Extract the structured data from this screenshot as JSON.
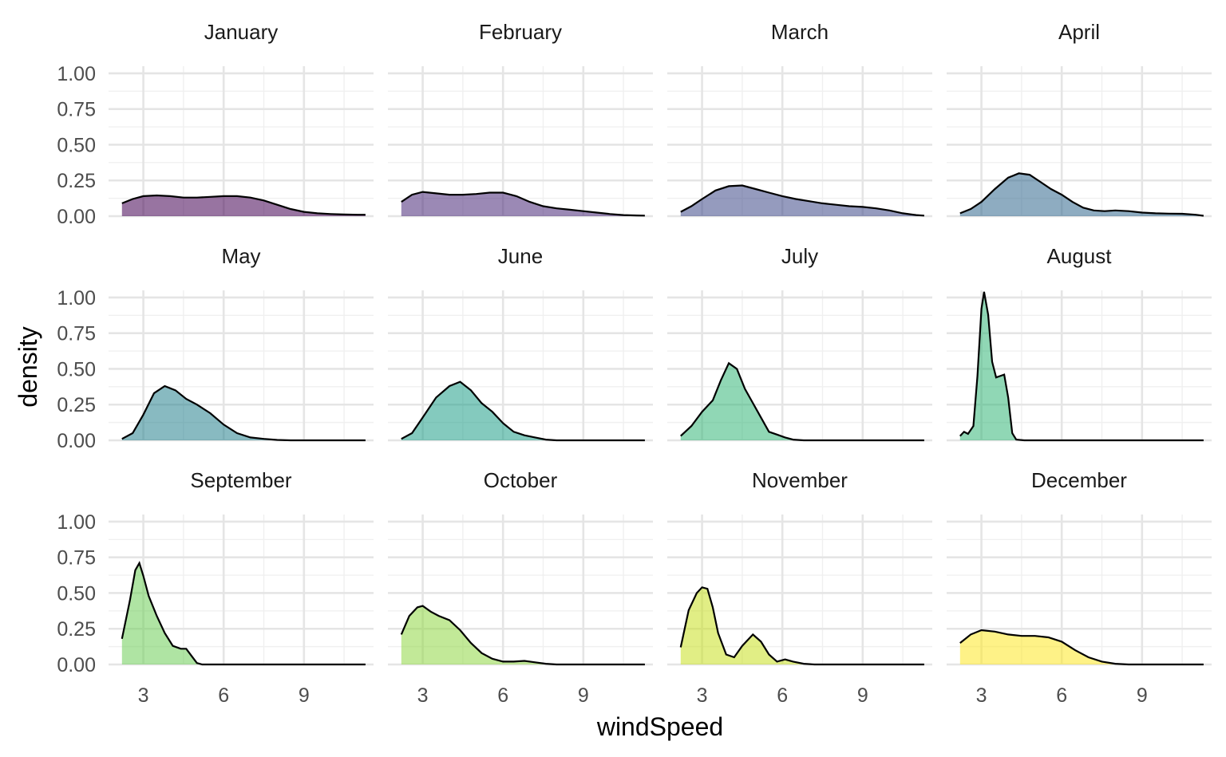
{
  "chart_data": {
    "type": "area",
    "xlabel": "windSpeed",
    "ylabel": "density",
    "xlim": [
      1.7,
      11.6
    ],
    "ylim": [
      0,
      1.05
    ],
    "x_ticks": [
      3,
      6,
      9
    ],
    "x_tick_labels": [
      "3",
      "6",
      "9"
    ],
    "y_ticks": [
      0,
      0.25,
      0.5,
      0.75,
      1.0
    ],
    "y_tick_labels": [
      "0.00",
      "0.25",
      "0.50",
      "0.75",
      "1.00"
    ],
    "grid": true,
    "legend": "none",
    "panels": [
      {
        "name": "January",
        "color": "#440154",
        "points": [
          [
            2.2,
            0.09
          ],
          [
            2.6,
            0.12
          ],
          [
            3.0,
            0.14
          ],
          [
            3.5,
            0.145
          ],
          [
            4.0,
            0.14
          ],
          [
            4.5,
            0.13
          ],
          [
            5.0,
            0.13
          ],
          [
            5.5,
            0.135
          ],
          [
            6.0,
            0.14
          ],
          [
            6.5,
            0.14
          ],
          [
            7.0,
            0.13
          ],
          [
            7.5,
            0.11
          ],
          [
            8.0,
            0.08
          ],
          [
            8.5,
            0.05
          ],
          [
            9.0,
            0.03
          ],
          [
            9.5,
            0.02
          ],
          [
            10.0,
            0.015
          ],
          [
            10.5,
            0.012
          ],
          [
            11.0,
            0.01
          ],
          [
            11.3,
            0.01
          ]
        ]
      },
      {
        "name": "February",
        "color": "#482878",
        "points": [
          [
            2.2,
            0.1
          ],
          [
            2.6,
            0.15
          ],
          [
            3.0,
            0.17
          ],
          [
            3.5,
            0.16
          ],
          [
            4.0,
            0.15
          ],
          [
            4.5,
            0.15
          ],
          [
            5.0,
            0.155
          ],
          [
            5.5,
            0.165
          ],
          [
            6.0,
            0.165
          ],
          [
            6.5,
            0.14
          ],
          [
            7.0,
            0.1
          ],
          [
            7.5,
            0.07
          ],
          [
            8.0,
            0.055
          ],
          [
            8.5,
            0.045
          ],
          [
            9.0,
            0.035
          ],
          [
            9.5,
            0.025
          ],
          [
            10.0,
            0.015
          ],
          [
            10.5,
            0.008
          ],
          [
            11.0,
            0.005
          ],
          [
            11.3,
            0.004
          ]
        ]
      },
      {
        "name": "March",
        "color": "#3e4989",
        "points": [
          [
            2.2,
            0.03
          ],
          [
            2.6,
            0.07
          ],
          [
            3.0,
            0.12
          ],
          [
            3.5,
            0.18
          ],
          [
            4.0,
            0.21
          ],
          [
            4.5,
            0.215
          ],
          [
            5.0,
            0.19
          ],
          [
            5.5,
            0.165
          ],
          [
            6.0,
            0.14
          ],
          [
            6.5,
            0.12
          ],
          [
            7.0,
            0.105
          ],
          [
            7.5,
            0.09
          ],
          [
            8.0,
            0.08
          ],
          [
            8.5,
            0.07
          ],
          [
            9.0,
            0.065
          ],
          [
            9.5,
            0.055
          ],
          [
            10.0,
            0.04
          ],
          [
            10.5,
            0.02
          ],
          [
            11.0,
            0.008
          ],
          [
            11.3,
            0.004
          ]
        ]
      },
      {
        "name": "April",
        "color": "#31688e",
        "points": [
          [
            2.2,
            0.02
          ],
          [
            2.6,
            0.05
          ],
          [
            3.0,
            0.1
          ],
          [
            3.5,
            0.19
          ],
          [
            4.0,
            0.27
          ],
          [
            4.4,
            0.3
          ],
          [
            4.8,
            0.29
          ],
          [
            5.2,
            0.24
          ],
          [
            5.6,
            0.19
          ],
          [
            6.0,
            0.15
          ],
          [
            6.4,
            0.1
          ],
          [
            6.8,
            0.06
          ],
          [
            7.2,
            0.04
          ],
          [
            7.6,
            0.035
          ],
          [
            8.0,
            0.04
          ],
          [
            8.5,
            0.035
          ],
          [
            9.0,
            0.025
          ],
          [
            9.5,
            0.02
          ],
          [
            10.0,
            0.018
          ],
          [
            10.5,
            0.017
          ],
          [
            11.0,
            0.01
          ],
          [
            11.3,
            0.003
          ]
        ]
      },
      {
        "name": "May",
        "color": "#26828e",
        "points": [
          [
            2.2,
            0.01
          ],
          [
            2.6,
            0.05
          ],
          [
            3.0,
            0.18
          ],
          [
            3.4,
            0.33
          ],
          [
            3.8,
            0.38
          ],
          [
            4.2,
            0.35
          ],
          [
            4.6,
            0.29
          ],
          [
            5.0,
            0.25
          ],
          [
            5.5,
            0.19
          ],
          [
            6.0,
            0.11
          ],
          [
            6.5,
            0.05
          ],
          [
            7.0,
            0.02
          ],
          [
            7.5,
            0.01
          ],
          [
            8.0,
            0.003
          ],
          [
            8.5,
            0.0
          ],
          [
            9.0,
            0.0
          ],
          [
            10.0,
            0.0
          ],
          [
            11.0,
            0.0
          ],
          [
            11.3,
            0.0
          ]
        ]
      },
      {
        "name": "June",
        "color": "#1f9e89",
        "points": [
          [
            2.2,
            0.01
          ],
          [
            2.6,
            0.05
          ],
          [
            3.0,
            0.16
          ],
          [
            3.5,
            0.3
          ],
          [
            4.0,
            0.38
          ],
          [
            4.4,
            0.41
          ],
          [
            4.8,
            0.35
          ],
          [
            5.2,
            0.26
          ],
          [
            5.6,
            0.2
          ],
          [
            6.0,
            0.12
          ],
          [
            6.4,
            0.06
          ],
          [
            6.8,
            0.035
          ],
          [
            7.2,
            0.02
          ],
          [
            7.6,
            0.005
          ],
          [
            8.0,
            0.0
          ],
          [
            9.0,
            0.0
          ],
          [
            10.0,
            0.0
          ],
          [
            11.0,
            0.0
          ],
          [
            11.3,
            0.0
          ]
        ]
      },
      {
        "name": "July",
        "color": "#35b779",
        "points": [
          [
            2.2,
            0.03
          ],
          [
            2.6,
            0.1
          ],
          [
            3.0,
            0.2
          ],
          [
            3.4,
            0.28
          ],
          [
            3.7,
            0.42
          ],
          [
            4.0,
            0.54
          ],
          [
            4.3,
            0.5
          ],
          [
            4.6,
            0.36
          ],
          [
            4.9,
            0.26
          ],
          [
            5.2,
            0.16
          ],
          [
            5.5,
            0.06
          ],
          [
            5.8,
            0.04
          ],
          [
            6.1,
            0.02
          ],
          [
            6.4,
            0.005
          ],
          [
            6.8,
            0.0
          ],
          [
            8.0,
            0.0
          ],
          [
            9.0,
            0.0
          ],
          [
            10.0,
            0.0
          ],
          [
            11.0,
            0.0
          ],
          [
            11.3,
            0.0
          ]
        ]
      },
      {
        "name": "August",
        "color": "#35b779",
        "points": [
          [
            2.2,
            0.03
          ],
          [
            2.35,
            0.06
          ],
          [
            2.5,
            0.045
          ],
          [
            2.7,
            0.1
          ],
          [
            2.85,
            0.45
          ],
          [
            3.0,
            0.92
          ],
          [
            3.1,
            1.04
          ],
          [
            3.25,
            0.88
          ],
          [
            3.4,
            0.55
          ],
          [
            3.55,
            0.44
          ],
          [
            3.7,
            0.45
          ],
          [
            3.85,
            0.46
          ],
          [
            4.0,
            0.3
          ],
          [
            4.15,
            0.05
          ],
          [
            4.3,
            0.005
          ],
          [
            4.6,
            0.0
          ],
          [
            6.0,
            0.0
          ],
          [
            8.0,
            0.0
          ],
          [
            10.0,
            0.0
          ],
          [
            11.3,
            0.0
          ]
        ]
      },
      {
        "name": "September",
        "color": "#6ece58",
        "points": [
          [
            2.2,
            0.18
          ],
          [
            2.5,
            0.45
          ],
          [
            2.7,
            0.66
          ],
          [
            2.85,
            0.71
          ],
          [
            3.0,
            0.62
          ],
          [
            3.2,
            0.48
          ],
          [
            3.5,
            0.34
          ],
          [
            3.8,
            0.22
          ],
          [
            4.1,
            0.13
          ],
          [
            4.4,
            0.11
          ],
          [
            4.6,
            0.11
          ],
          [
            4.8,
            0.06
          ],
          [
            5.0,
            0.01
          ],
          [
            5.2,
            0.0
          ],
          [
            6.0,
            0.0
          ],
          [
            8.0,
            0.0
          ],
          [
            10.0,
            0.0
          ],
          [
            11.3,
            0.0
          ]
        ]
      },
      {
        "name": "October",
        "color": "#90d743",
        "points": [
          [
            2.2,
            0.21
          ],
          [
            2.5,
            0.34
          ],
          [
            2.8,
            0.4
          ],
          [
            3.0,
            0.41
          ],
          [
            3.3,
            0.37
          ],
          [
            3.6,
            0.34
          ],
          [
            4.0,
            0.31
          ],
          [
            4.4,
            0.24
          ],
          [
            4.8,
            0.15
          ],
          [
            5.2,
            0.08
          ],
          [
            5.6,
            0.04
          ],
          [
            6.0,
            0.02
          ],
          [
            6.4,
            0.02
          ],
          [
            6.8,
            0.025
          ],
          [
            7.2,
            0.015
          ],
          [
            7.6,
            0.005
          ],
          [
            8.0,
            0.0
          ],
          [
            9.0,
            0.0
          ],
          [
            10.0,
            0.0
          ],
          [
            11.3,
            0.0
          ]
        ]
      },
      {
        "name": "November",
        "color": "#c8e020",
        "points": [
          [
            2.2,
            0.12
          ],
          [
            2.5,
            0.38
          ],
          [
            2.8,
            0.5
          ],
          [
            3.0,
            0.54
          ],
          [
            3.2,
            0.53
          ],
          [
            3.4,
            0.4
          ],
          [
            3.6,
            0.22
          ],
          [
            3.9,
            0.07
          ],
          [
            4.2,
            0.05
          ],
          [
            4.5,
            0.13
          ],
          [
            4.9,
            0.21
          ],
          [
            5.2,
            0.16
          ],
          [
            5.5,
            0.07
          ],
          [
            5.8,
            0.02
          ],
          [
            6.1,
            0.035
          ],
          [
            6.4,
            0.02
          ],
          [
            6.8,
            0.005
          ],
          [
            7.2,
            0.0
          ],
          [
            8.0,
            0.0
          ],
          [
            10.0,
            0.0
          ],
          [
            11.3,
            0.0
          ]
        ]
      },
      {
        "name": "December",
        "color": "#fde725",
        "points": [
          [
            2.2,
            0.15
          ],
          [
            2.6,
            0.21
          ],
          [
            3.0,
            0.24
          ],
          [
            3.5,
            0.23
          ],
          [
            4.0,
            0.21
          ],
          [
            4.5,
            0.2
          ],
          [
            5.0,
            0.2
          ],
          [
            5.5,
            0.19
          ],
          [
            6.0,
            0.16
          ],
          [
            6.5,
            0.1
          ],
          [
            7.0,
            0.05
          ],
          [
            7.5,
            0.02
          ],
          [
            8.0,
            0.005
          ],
          [
            8.5,
            0.0
          ],
          [
            9.0,
            0.0
          ],
          [
            10.0,
            0.0
          ],
          [
            11.0,
            0.0
          ],
          [
            11.3,
            0.0
          ]
        ]
      }
    ]
  }
}
